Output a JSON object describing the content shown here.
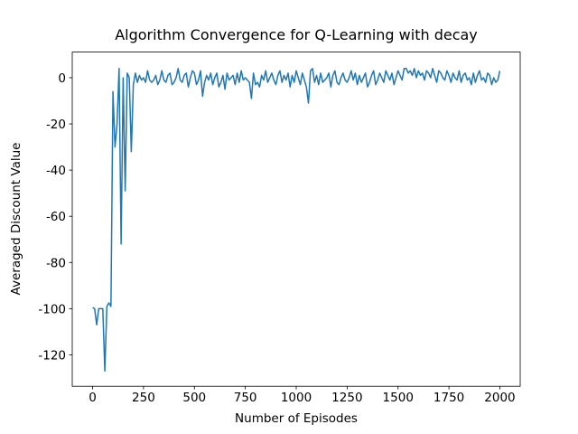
{
  "chart_data": {
    "type": "line",
    "title": "Algorithm Convergence for Q-Learning with decay",
    "xlabel": "Number of Episodes",
    "ylabel": "Averaged Discount Value",
    "x": [
      0,
      10,
      20,
      30,
      40,
      50,
      60,
      70,
      80,
      90,
      100,
      110,
      120,
      130,
      140,
      150,
      160,
      170,
      180,
      190,
      200,
      210,
      220,
      230,
      240,
      250,
      260,
      270,
      280,
      290,
      300,
      310,
      320,
      330,
      340,
      350,
      360,
      370,
      380,
      390,
      400,
      410,
      420,
      430,
      440,
      450,
      460,
      470,
      480,
      490,
      500,
      510,
      520,
      530,
      540,
      550,
      560,
      570,
      580,
      590,
      600,
      610,
      620,
      630,
      640,
      650,
      660,
      670,
      680,
      690,
      700,
      710,
      720,
      730,
      740,
      750,
      760,
      770,
      780,
      790,
      800,
      810,
      820,
      830,
      840,
      850,
      860,
      870,
      880,
      890,
      900,
      910,
      920,
      930,
      940,
      950,
      960,
      970,
      980,
      990,
      1000,
      1010,
      1020,
      1030,
      1040,
      1050,
      1060,
      1070,
      1080,
      1090,
      1100,
      1110,
      1120,
      1130,
      1140,
      1150,
      1160,
      1170,
      1180,
      1190,
      1200,
      1210,
      1220,
      1230,
      1240,
      1250,
      1260,
      1270,
      1280,
      1290,
      1300,
      1310,
      1320,
      1330,
      1340,
      1350,
      1360,
      1370,
      1380,
      1390,
      1400,
      1410,
      1420,
      1430,
      1440,
      1450,
      1460,
      1470,
      1480,
      1490,
      1500,
      1510,
      1520,
      1530,
      1540,
      1550,
      1560,
      1570,
      1580,
      1590,
      1600,
      1610,
      1620,
      1630,
      1640,
      1650,
      1660,
      1670,
      1680,
      1690,
      1700,
      1710,
      1720,
      1730,
      1740,
      1750,
      1760,
      1770,
      1780,
      1790,
      1800,
      1810,
      1820,
      1830,
      1840,
      1850,
      1860,
      1870,
      1880,
      1890,
      1900,
      1910,
      1920,
      1930,
      1940,
      1950,
      1960,
      1970,
      1980,
      1990,
      2000
    ],
    "series": [
      {
        "color": "#1f77b4",
        "values": [
          -99.5,
          -100,
          -107,
          -100,
          -100,
          -100,
          -127,
          -99,
          -97.5,
          -99,
          -6,
          -30,
          -20,
          4,
          -72,
          0,
          -49,
          2,
          0,
          -32,
          -3,
          2,
          -2,
          1,
          -1,
          0,
          -2,
          3,
          -1,
          -2,
          -1,
          1,
          -3,
          -1,
          3,
          -1,
          -2,
          1,
          2,
          -3,
          -2,
          0,
          4,
          -1,
          -2,
          1,
          2,
          -4,
          0,
          3,
          2,
          -3,
          -1,
          3,
          -8,
          -2,
          1,
          -1,
          2,
          -3,
          0,
          2,
          -4,
          -2,
          1,
          -5,
          2,
          -1,
          0,
          1,
          -3,
          2,
          -2,
          3,
          -1,
          0,
          -1,
          -2,
          -9,
          2,
          -3,
          -2,
          -4,
          1,
          -1,
          3,
          -2,
          0,
          2,
          -1,
          -3,
          1,
          3,
          -2,
          1,
          -1,
          2,
          -4,
          1,
          -2,
          3,
          0,
          -3,
          2,
          -1,
          -4,
          -11,
          3,
          4,
          -2,
          1,
          -3,
          2,
          -2,
          -1,
          0,
          2,
          -4,
          1,
          3,
          -2,
          -3,
          0,
          2,
          -1,
          -2,
          0,
          3,
          -1,
          2,
          -3,
          1,
          -2,
          0,
          2,
          -4,
          -2,
          1,
          3,
          -3,
          -1,
          2,
          0,
          -2,
          3,
          1,
          -1,
          2,
          -3,
          0,
          3,
          1,
          -1,
          4,
          4,
          2,
          3,
          1,
          4,
          0,
          3,
          1,
          2,
          -1,
          3,
          2,
          0,
          4,
          1,
          -2,
          3,
          2,
          0,
          -1,
          3,
          1,
          -2,
          2,
          0,
          -1,
          3,
          -2,
          1,
          2,
          -1,
          0,
          -3,
          2,
          -2,
          1,
          3,
          -1,
          0,
          -2,
          2,
          1,
          -3,
          0,
          -2,
          -1,
          3
        ]
      }
    ],
    "xlim": [
      -100,
      2100
    ],
    "ylim": [
      -133.6,
      11.1
    ],
    "xticks": [
      0,
      250,
      500,
      750,
      1000,
      1250,
      1500,
      1750,
      2000
    ],
    "yticks": [
      -120,
      -100,
      -80,
      -60,
      -40,
      -20,
      0
    ]
  }
}
